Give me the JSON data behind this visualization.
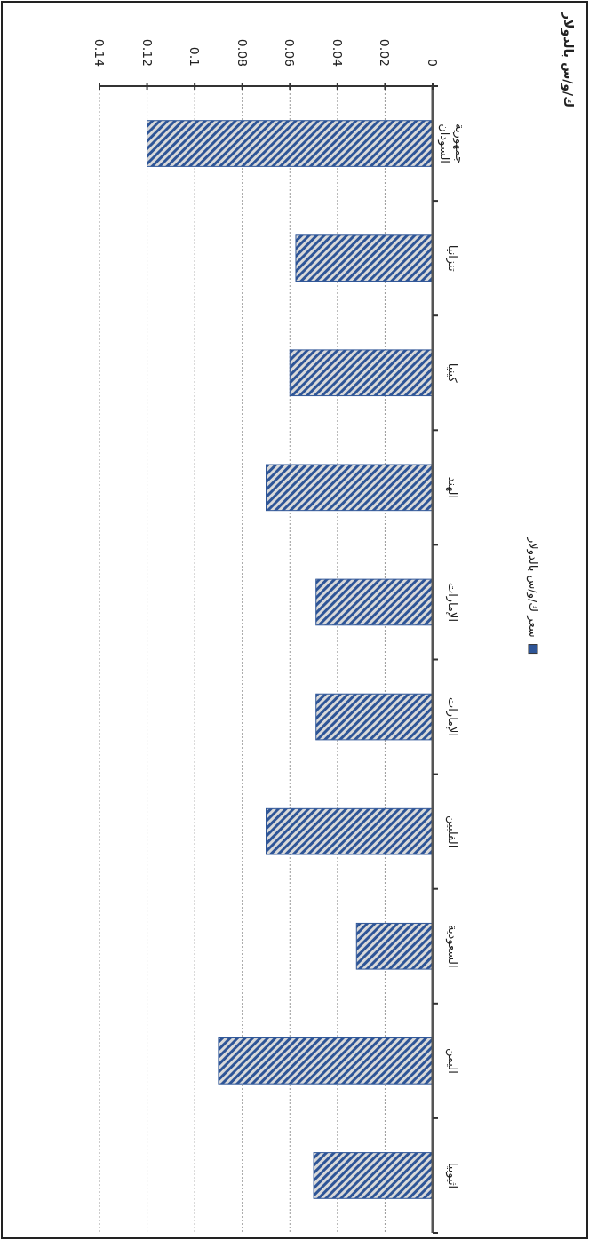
{
  "chart_data": {
    "type": "bar",
    "orientation": "horizontal",
    "title": "ك/و/س بالدولار",
    "categories": [
      "جمهورية السودان",
      "تنزانيا",
      "كينيا",
      "الهند",
      "الإمارات",
      "الإمارات",
      "الفلبين",
      "السعودية",
      "اليمن",
      "اثيوبيا"
    ],
    "series": [
      {
        "name": "سعر ك/و/س بالدولار",
        "color": "#2e5597",
        "values": [
          0.12,
          0.0575,
          0.06,
          0.07,
          0.049,
          0.049,
          0.07,
          0.032,
          0.09,
          0.05
        ]
      }
    ],
    "xlim": [
      0.14,
      0
    ],
    "xticks": [
      0.14,
      0.12,
      0.1,
      0.08,
      0.06,
      0.04,
      0.02,
      0
    ],
    "grid": "x",
    "legend": "right"
  }
}
